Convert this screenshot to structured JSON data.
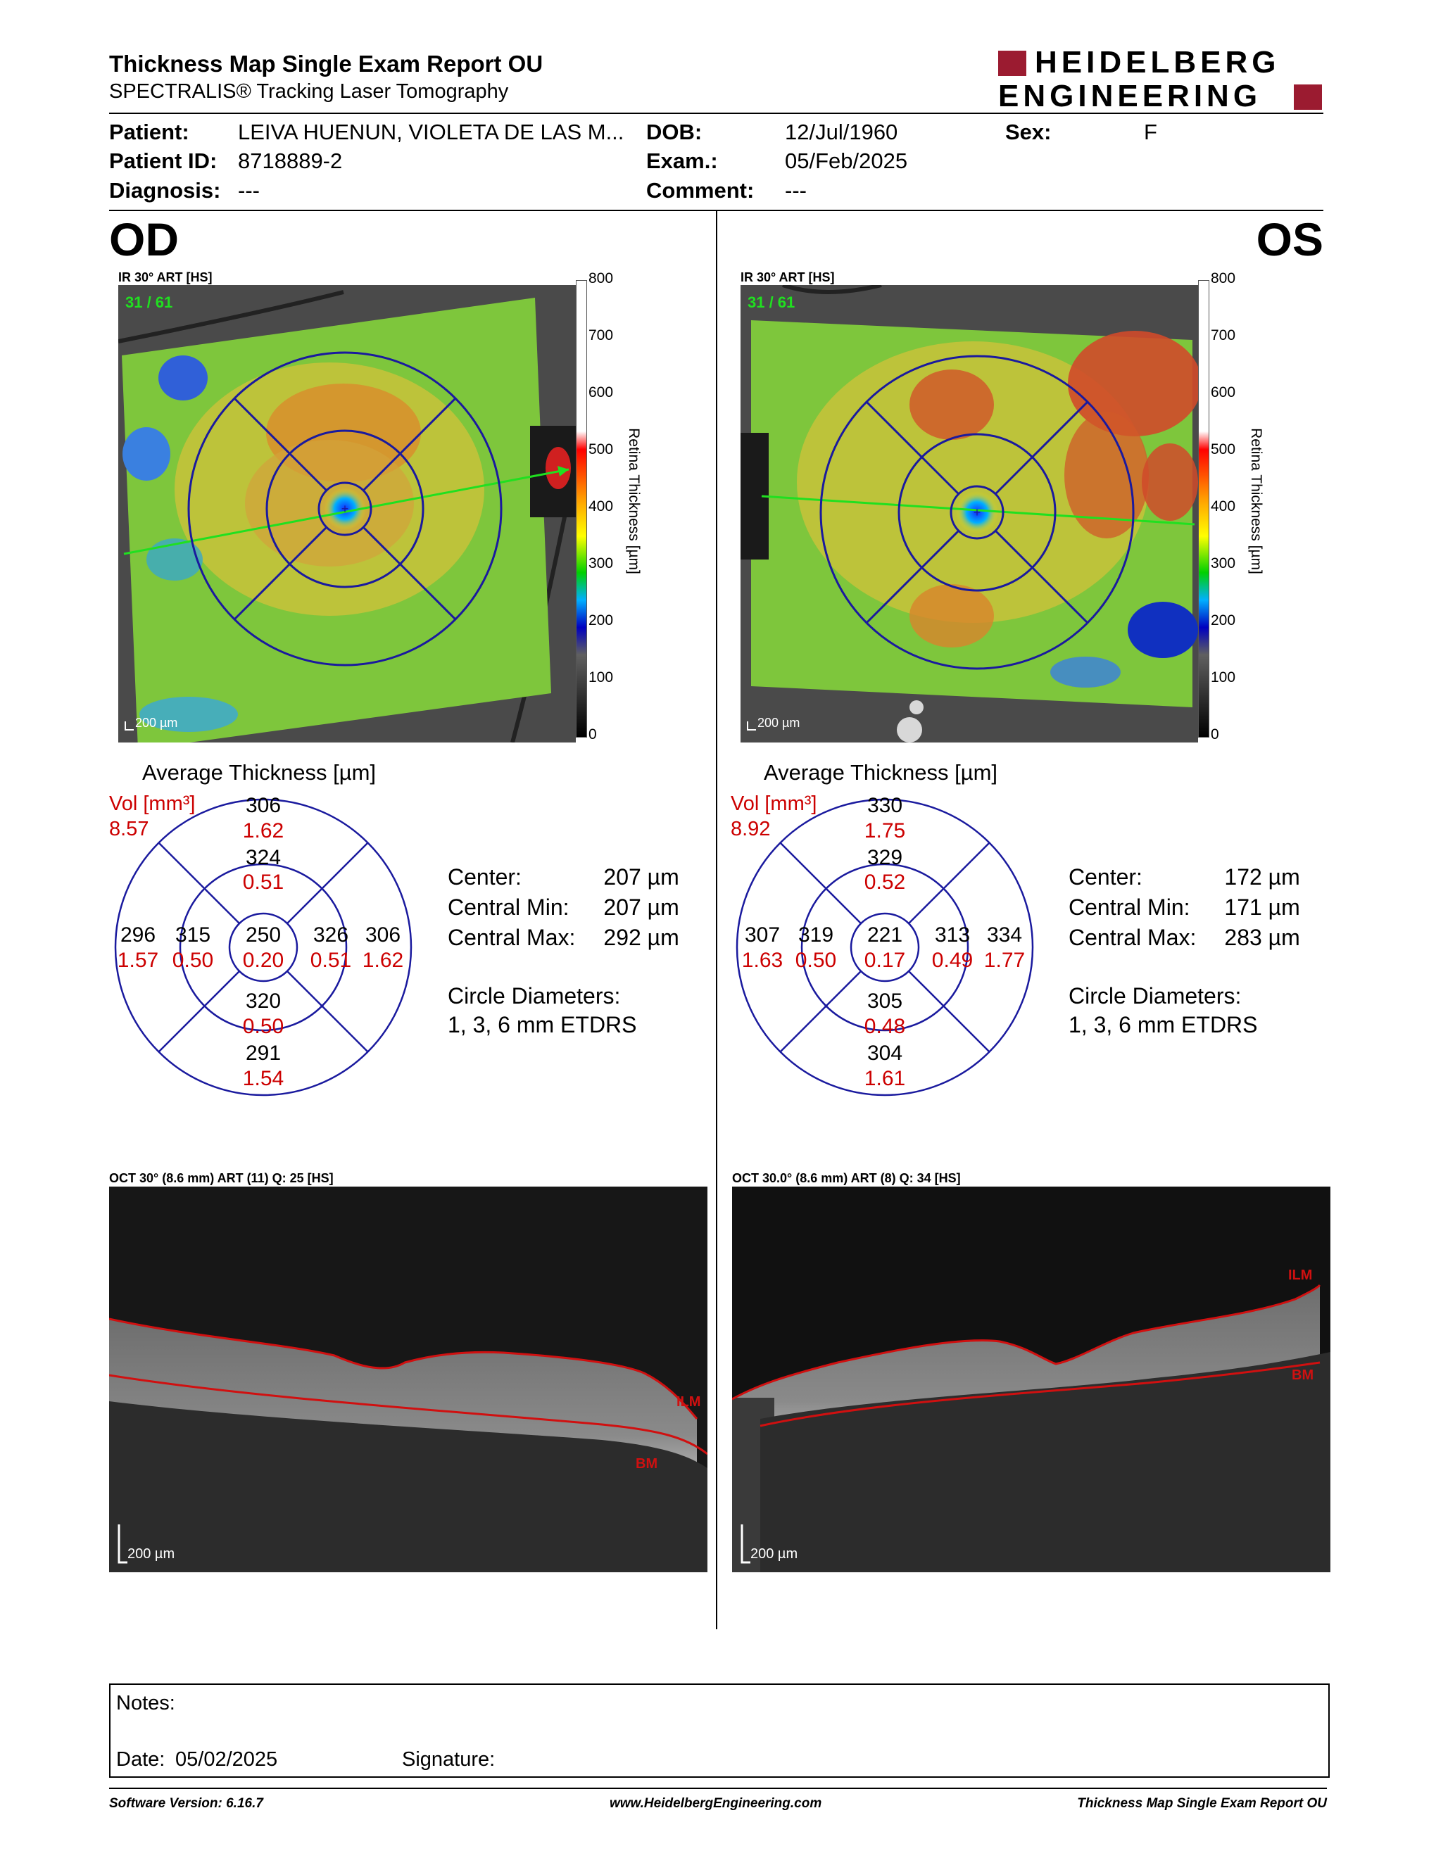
{
  "header": {
    "title": "Thickness Map Single Exam Report OU",
    "subtitle": "SPECTRALIS® Tracking Laser Tomography",
    "logo_line1": "HEIDELBERG",
    "logo_line2": "ENGINEERING"
  },
  "patient": {
    "patient_label": "Patient:",
    "patient_value": "LEIVA HUENUN, VIOLETA DE LAS M...",
    "id_label": "Patient ID:",
    "id_value": "8718889-2",
    "diagnosis_label": "Diagnosis:",
    "diagnosis_value": "---",
    "dob_label": "DOB:",
    "dob_value": "12/Jul/1960",
    "exam_label": "Exam.:",
    "exam_value": "05/Feb/2025",
    "comment_label": "Comment:",
    "comment_value": "---",
    "sex_label": "Sex:",
    "sex_value": "F"
  },
  "od": {
    "eye": "OD",
    "ir_caption": "IR 30° ART [HS]",
    "frame": "31 / 61",
    "scalebar": "200 µm",
    "avg_title": "Average Thickness [µm]",
    "vol_label": "Vol [mm³]",
    "vol_value": "8.57",
    "grid": {
      "center": [
        "250",
        "0.20"
      ],
      "inner_sup": [
        "324",
        "0.51"
      ],
      "inner_inf": [
        "320",
        "0.50"
      ],
      "inner_temp": [
        "315",
        "0.50"
      ],
      "inner_nas": [
        "326",
        "0.51"
      ],
      "outer_sup": [
        "306",
        "1.62"
      ],
      "outer_inf": [
        "291",
        "1.54"
      ],
      "outer_temp": [
        "296",
        "1.57"
      ],
      "outer_nas": [
        "306",
        "1.62"
      ]
    },
    "center_label": "Center:",
    "center_value": "207 µm",
    "cmin_label": "Central Min:",
    "cmin_value": "207 µm",
    "cmax_label": "Central Max:",
    "cmax_value": "292 µm",
    "circ_label": "Circle Diameters:",
    "circ_value": "1, 3, 6 mm ETDRS",
    "oct_caption": "OCT 30° (8.6 mm) ART (11) Q: 25 [HS]",
    "oct_scalebar": "200 µm",
    "ilm": "ILM",
    "bm": "BM"
  },
  "os": {
    "eye": "OS",
    "ir_caption": "IR 30° ART [HS]",
    "frame": "31 / 61",
    "scalebar": "200 µm",
    "avg_title": "Average Thickness [µm]",
    "vol_label": "Vol [mm³]",
    "vol_value": "8.92",
    "grid": {
      "center": [
        "221",
        "0.17"
      ],
      "inner_sup": [
        "329",
        "0.52"
      ],
      "inner_inf": [
        "305",
        "0.48"
      ],
      "inner_temp": [
        "319",
        "0.50"
      ],
      "inner_nas": [
        "313",
        "0.49"
      ],
      "outer_sup": [
        "330",
        "1.75"
      ],
      "outer_inf": [
        "304",
        "1.61"
      ],
      "outer_temp": [
        "307",
        "1.63"
      ],
      "outer_nas": [
        "334",
        "1.77"
      ]
    },
    "center_label": "Center:",
    "center_value": "172 µm",
    "cmin_label": "Central Min:",
    "cmin_value": "171 µm",
    "cmax_label": "Central Max:",
    "cmax_value": "283 µm",
    "circ_label": "Circle Diameters:",
    "circ_value": "1, 3, 6 mm ETDRS",
    "oct_caption": "OCT 30.0° (8.6 mm) ART (8) Q: 34 [HS]",
    "oct_scalebar": "200 µm",
    "ilm": "ILM",
    "bm": "BM"
  },
  "colorbar": {
    "ticks": [
      "800",
      "700",
      "600",
      "500",
      "400",
      "300",
      "200",
      "100",
      "0"
    ],
    "label": "Retina Thickness [µm]"
  },
  "notes": {
    "label": "Notes:",
    "date_label": "Date:",
    "date_value": "05/02/2025",
    "signature_label": "Signature:"
  },
  "footer": {
    "software": "Software Version: 6.16.7",
    "url": "www.HeidelbergEngineering.com",
    "report": "Thickness Map Single Exam Report OU"
  },
  "colors": {
    "accent_red": "#cc0000",
    "grid_blue": "#1a1a9e",
    "logo_red": "#9b1b30"
  }
}
